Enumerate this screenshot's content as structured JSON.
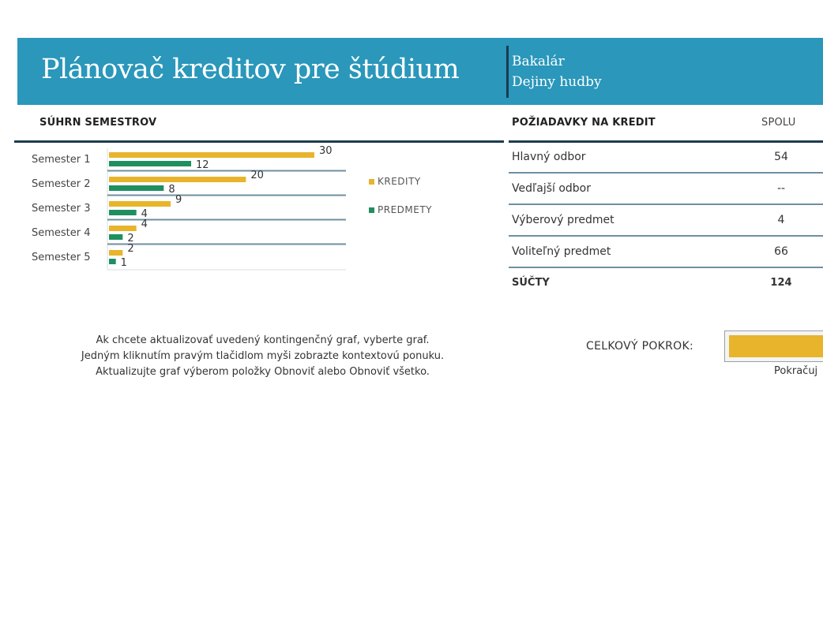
{
  "header": {
    "title": "Plánovač kreditov pre štúdium",
    "degree": "Bakalár",
    "major": "Dejiny hudby"
  },
  "summary": {
    "heading": "SÚHRN SEMESTROV"
  },
  "chart_data": {
    "type": "bar",
    "orientation": "horizontal",
    "categories": [
      "Semester 1",
      "Semester 2",
      "Semester 3",
      "Semester 4",
      "Semester 5"
    ],
    "series": [
      {
        "name": "KREDITY",
        "values": [
          30,
          20,
          9,
          4,
          2
        ],
        "color": "#e8b42b"
      },
      {
        "name": "PREDMETY",
        "values": [
          12,
          8,
          4,
          2,
          1
        ],
        "color": "#1f8f5f"
      }
    ],
    "xlim": [
      0,
      30
    ],
    "legend_position": "right",
    "grid": true
  },
  "requirements": {
    "heading": "POŽIADAVKY NA KREDIT",
    "total_heading": "SPOLU",
    "rows": [
      {
        "label": "Hlavný odbor",
        "value": "54"
      },
      {
        "label": "Vedľajší odbor",
        "value": "--"
      },
      {
        "label": "Výberový predmet",
        "value": "4"
      },
      {
        "label": "Voliteľný predmet",
        "value": "66"
      }
    ],
    "sum_label": "SÚČTY",
    "sum_value": "124"
  },
  "instructions": {
    "line1": "Ak chcete aktualizovať uvedený kontingenčný graf, vyberte graf.",
    "line2": "Jedným kliknutím pravým tlačidlom myši zobrazte kontextovú ponuku.",
    "line3": "Aktualizujte graf výberom položky Obnoviť alebo Obnoviť všetko."
  },
  "progress": {
    "label": "CELKOVÝ POKROK:",
    "note": "Pokračuj",
    "fill_color": "#e8b42b"
  }
}
